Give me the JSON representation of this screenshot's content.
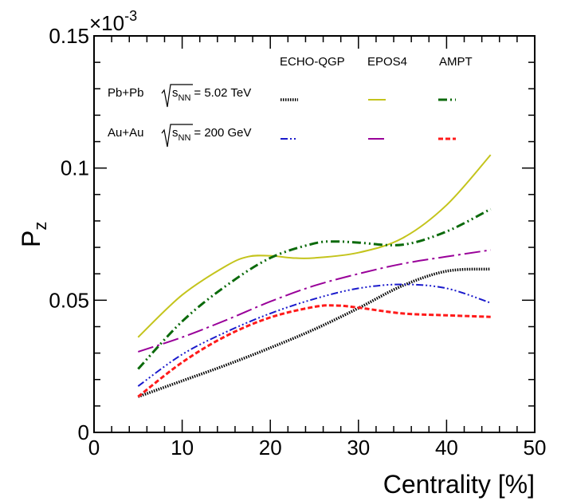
{
  "chart_data": {
    "type": "line",
    "title": "",
    "xlabel": "Centrality [%]",
    "ylabel": "P",
    "ylabel_sub": "z",
    "y_multiplier": "×10",
    "y_multiplier_exp": "-3",
    "xlim": [
      0,
      50
    ],
    "ylim": [
      0,
      0.15
    ],
    "x_ticks": [
      0,
      10,
      20,
      30,
      40,
      50
    ],
    "x_tick_labels": [
      "0",
      "10",
      "20",
      "30",
      "40",
      "50"
    ],
    "y_ticks": [
      0,
      0.05,
      0.1,
      0.15
    ],
    "y_tick_labels": [
      "0",
      "0.05",
      "0.1",
      "0.15"
    ],
    "grid": false,
    "legend": {
      "headers": [
        "ECHO-QGP",
        "EPOS4",
        "AMPT"
      ],
      "rows": [
        {
          "system": "Pb+Pb",
          "energy_prefix": "s",
          "energy_sub": "NN",
          "energy_value": "= 5.02 TeV"
        },
        {
          "system": "Au+Au",
          "energy_prefix": "s",
          "energy_sub": "NN",
          "energy_value": "= 200 GeV"
        }
      ]
    },
    "series": [
      {
        "name": "ECHO-QGP Pb+Pb",
        "color": "#000000",
        "dash": "1.5,1.5",
        "width": 3.5,
        "x": [
          5,
          10,
          15,
          20,
          25,
          30,
          35,
          40,
          45
        ],
        "y": [
          0.0135,
          0.0195,
          0.0255,
          0.032,
          0.039,
          0.047,
          0.0555,
          0.061,
          0.0618
        ]
      },
      {
        "name": "EPOS4 Pb+Pb",
        "color": "#c4c41c",
        "dash": "",
        "width": 2,
        "x": [
          5,
          10,
          15,
          17.5,
          20,
          22.5,
          25,
          30,
          35,
          40,
          45
        ],
        "y": [
          0.036,
          0.052,
          0.063,
          0.0665,
          0.0668,
          0.066,
          0.066,
          0.068,
          0.0735,
          0.086,
          0.105
        ]
      },
      {
        "name": "AMPT Pb+Pb",
        "color": "#0b6a0b",
        "dash": "11,4,2,4,2,4",
        "width": 3,
        "x": [
          5,
          10,
          15,
          20,
          25,
          27.5,
          30,
          35,
          40,
          45
        ],
        "y": [
          0.024,
          0.042,
          0.0555,
          0.066,
          0.0715,
          0.0722,
          0.0718,
          0.071,
          0.076,
          0.0845
        ]
      },
      {
        "name": "ECHO-QGP Au+Au",
        "color": "#1a1acc",
        "dash": "9,3,2,3,2,3,2,3",
        "width": 2,
        "x": [
          5,
          10,
          15,
          20,
          25,
          30,
          35,
          40,
          45
        ],
        "y": [
          0.0175,
          0.0295,
          0.038,
          0.045,
          0.0505,
          0.0545,
          0.056,
          0.0545,
          0.049
        ]
      },
      {
        "name": "EPOS4 Au+Au",
        "color": "#990099",
        "dash": "20,5,3,5",
        "width": 2,
        "x": [
          5,
          10,
          15,
          20,
          25,
          30,
          35,
          40,
          45
        ],
        "y": [
          0.0305,
          0.036,
          0.0425,
          0.0495,
          0.0555,
          0.06,
          0.0638,
          0.0665,
          0.069
        ]
      },
      {
        "name": "AMPT Au+Au",
        "color": "#ff1a1a",
        "dash": "6,3",
        "width": 3,
        "x": [
          5,
          10,
          15,
          20,
          25,
          27.5,
          30,
          35,
          40,
          45
        ],
        "y": [
          0.0135,
          0.0265,
          0.0365,
          0.0435,
          0.0475,
          0.048,
          0.0472,
          0.045,
          0.0443,
          0.0437
        ]
      }
    ]
  }
}
